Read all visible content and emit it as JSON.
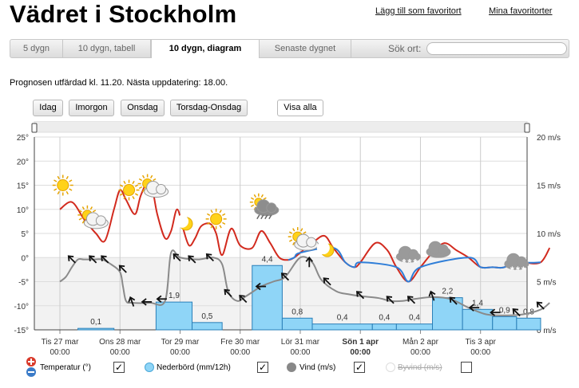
{
  "page": {
    "title": "Vädret i Stockholm"
  },
  "links": {
    "add_favorite": "Lägg till som favoritort",
    "my_favorites": "Mina favoritorter"
  },
  "tabs": [
    {
      "label": "5 dygn"
    },
    {
      "label": "10 dygn, tabell"
    },
    {
      "label": "10 dygn, diagram"
    },
    {
      "label": "Senaste dygnet"
    }
  ],
  "search": {
    "label": "Sök ort:",
    "value": ""
  },
  "forecast_text": "Prognosen utfärdad kl. 11.20. Nästa uppdatering: 18.00.",
  "buttons": [
    {
      "label": "Idag"
    },
    {
      "label": "Imorgon"
    },
    {
      "label": "Onsdag"
    },
    {
      "label": "Torsdag-Onsdag"
    },
    {
      "label": "Visa alla"
    }
  ],
  "legend": {
    "temperature": "Temperatur (°)",
    "precip": "Nederbörd (mm/12h)",
    "wind": "Vind (m/s)",
    "gust": "Byvind (m/s)",
    "checked": "✓"
  },
  "chart_data": {
    "type": "line",
    "left_axis": {
      "ticks": [
        "25°",
        "20°",
        "15°",
        "10°",
        "5°",
        "0°",
        "-5°",
        "-10°",
        "-15°"
      ],
      "range": [
        -15,
        25
      ]
    },
    "right_axis": {
      "ticks": [
        "20 m/s",
        "15 m/s",
        "10 m/s",
        "5 m/s",
        "0 m/s"
      ],
      "range": [
        0,
        20
      ]
    },
    "days": [
      {
        "name": "Tis 27 mar",
        "time": "00:00",
        "bold": false
      },
      {
        "name": "Ons 28 mar",
        "time": "00:00",
        "bold": false
      },
      {
        "name": "Tor 29 mar",
        "time": "00:00",
        "bold": false
      },
      {
        "name": "Fre 30 mar",
        "time": "00:00",
        "bold": false
      },
      {
        "name": "Lör 31 mar",
        "time": "00:00",
        "bold": false
      },
      {
        "name": "Sön 1 apr",
        "time": "00:00",
        "bold": true
      },
      {
        "name": "Mån 2 apr",
        "time": "00:00",
        "bold": false
      },
      {
        "name": "Tis 3 apr",
        "time": "00:00",
        "bold": false
      }
    ],
    "temperature": {
      "x": [
        0,
        0.2,
        0.4,
        0.6,
        0.75,
        0.9,
        1.0,
        1.1,
        1.25,
        1.35,
        1.5,
        1.62,
        1.75,
        1.85,
        1.95,
        2.05,
        2.15,
        2.25,
        2.35,
        2.5,
        2.6,
        2.7,
        2.85,
        3.0,
        3.2,
        3.35,
        3.5,
        3.65,
        3.8,
        3.9,
        4.0,
        4.2,
        4.4,
        4.55,
        4.75,
        4.9,
        5.0,
        5.25,
        5.45,
        5.6,
        5.8,
        6.0,
        6.2,
        6.4,
        6.6,
        6.8,
        7.0,
        7.2,
        7.4,
        7.6,
        7.75,
        8.0,
        8.15
      ],
      "y": [
        10,
        11.5,
        8,
        5,
        3.5,
        10,
        14,
        12,
        9,
        13,
        16,
        9,
        4,
        5.5,
        10,
        6,
        2.5,
        4,
        6.5,
        7,
        5,
        0.5,
        6,
        2.5,
        2,
        5.5,
        3,
        0,
        -0.5,
        0,
        1,
        3,
        4.5,
        2,
        -1,
        -2,
        -1,
        3,
        1.5,
        -2,
        -5,
        -2,
        1,
        3,
        1.5,
        0,
        -2,
        -2,
        -2,
        0,
        -1,
        -1,
        2
      ]
    },
    "temperature_below_zero": {
      "x": [
        3.8,
        3.9,
        4.0,
        4.55,
        4.75,
        4.9,
        5.0,
        5.6,
        5.8,
        6.0,
        6.8,
        7.0,
        7.2,
        7.4,
        7.6,
        7.75,
        8.0
      ],
      "y": [
        -0.5,
        0,
        1,
        2,
        -1,
        -2,
        -1,
        -2,
        -5,
        -2,
        0,
        -2,
        -2,
        -2,
        0,
        -1,
        -1
      ]
    },
    "precipitation": [
      {
        "x0": 0.3,
        "x1": 0.9,
        "mm": 0.1,
        "label": "0,1"
      },
      {
        "x0": 1.6,
        "x1": 2.2,
        "mm": 1.9,
        "label": "1,9"
      },
      {
        "x0": 2.2,
        "x1": 2.7,
        "mm": 0.5,
        "label": "0,5"
      },
      {
        "x0": 3.2,
        "x1": 3.7,
        "mm": 4.4,
        "label": "4,4"
      },
      {
        "x0": 3.7,
        "x1": 4.2,
        "mm": 0.8,
        "label": "0,8"
      },
      {
        "x0": 4.2,
        "x1": 5.2,
        "mm": 0.4,
        "label": "0,4"
      },
      {
        "x0": 5.2,
        "x1": 5.6,
        "mm": 0.4,
        "label": "0,4"
      },
      {
        "x0": 5.6,
        "x1": 6.2,
        "mm": 0.4,
        "label": "0,4"
      },
      {
        "x0": 6.2,
        "x1": 6.7,
        "mm": 2.2,
        "label": "2,2"
      },
      {
        "x0": 6.7,
        "x1": 7.2,
        "mm": 1.4,
        "label": "1,4"
      },
      {
        "x0": 7.2,
        "x1": 7.6,
        "mm": 0.9,
        "label": "0,9"
      },
      {
        "x0": 7.6,
        "x1": 8.0,
        "mm": 0.8,
        "label": "0,8"
      }
    ],
    "wind": {
      "x": [
        0,
        0.1,
        0.2,
        0.3,
        0.4,
        0.55,
        0.7,
        0.85,
        1.0,
        1.05,
        1.1,
        1.2,
        1.5,
        1.75,
        1.85,
        2.0,
        2.3,
        2.55,
        2.7,
        2.8,
        2.95,
        3.1,
        3.35,
        3.55,
        3.75,
        4.0,
        4.2,
        4.35,
        4.6,
        4.8,
        5.0,
        5.3,
        5.5,
        5.7,
        5.9,
        6.2,
        6.5,
        6.8,
        7.1,
        7.4,
        7.7,
        8.0,
        8.15
      ],
      "y": [
        5,
        5.5,
        6.5,
        7.3,
        7.3,
        7.3,
        7.3,
        6.8,
        6,
        4.5,
        3,
        2.8,
        2.8,
        3,
        8,
        7.5,
        7.3,
        7.5,
        6.8,
        4,
        3,
        3.5,
        4.5,
        5,
        5.5,
        7.5,
        7,
        5.2,
        4,
        3.7,
        3.5,
        3.3,
        3,
        3,
        3.2,
        3.4,
        3.2,
        2.3,
        1.6,
        1.5,
        1.6,
        2.1,
        2.8
      ]
    },
    "arrows": [
      {
        "x": 0.2,
        "w": 7.3,
        "r": 135
      },
      {
        "x": 0.55,
        "w": 7.3,
        "r": 135
      },
      {
        "x": 0.75,
        "w": 7.3,
        "r": 135
      },
      {
        "x": 1.05,
        "w": 6.3,
        "r": 135
      },
      {
        "x": 1.2,
        "w": 2.9,
        "r": 160
      },
      {
        "x": 1.45,
        "w": 2.9,
        "r": 90
      },
      {
        "x": 1.7,
        "w": 3.2,
        "r": 90
      },
      {
        "x": 1.95,
        "w": 7.5,
        "r": 135
      },
      {
        "x": 2.2,
        "w": 7.3,
        "r": 135
      },
      {
        "x": 2.5,
        "w": 7.5,
        "r": 135
      },
      {
        "x": 2.8,
        "w": 3.8,
        "r": 135
      },
      {
        "x": 3.05,
        "w": 3.2,
        "r": 135
      },
      {
        "x": 3.35,
        "w": 4.5,
        "r": 90
      },
      {
        "x": 3.75,
        "w": 5.5,
        "r": 135
      },
      {
        "x": 4.15,
        "w": 7,
        "r": 180
      },
      {
        "x": 4.45,
        "w": 5,
        "r": 135
      },
      {
        "x": 5.0,
        "w": 3.6,
        "r": 135
      },
      {
        "x": 5.5,
        "w": 3.1,
        "r": 135
      },
      {
        "x": 5.85,
        "w": 3.1,
        "r": 135
      },
      {
        "x": 6.2,
        "w": 3.5,
        "r": 160
      },
      {
        "x": 6.55,
        "w": 3,
        "r": 135
      },
      {
        "x": 6.9,
        "w": 2.3,
        "r": 90
      },
      {
        "x": 7.25,
        "w": 1.8,
        "r": 90
      },
      {
        "x": 7.6,
        "w": 1.8,
        "r": 135
      },
      {
        "x": 8.0,
        "w": 2.5,
        "r": 135
      }
    ],
    "weather_icons": [
      {
        "x": 0.05,
        "t": 15,
        "kind": "sun"
      },
      {
        "x": 0.55,
        "t": 8,
        "kind": "sun-cloud"
      },
      {
        "x": 1.15,
        "t": 14,
        "kind": "sun"
      },
      {
        "x": 1.55,
        "t": 14.5,
        "kind": "sun-cloud"
      },
      {
        "x": 2.1,
        "t": 7,
        "kind": "moon"
      },
      {
        "x": 2.6,
        "t": 8,
        "kind": "sun"
      },
      {
        "x": 3.4,
        "t": 10.5,
        "kind": "rain"
      },
      {
        "x": 4.05,
        "t": 3.5,
        "kind": "sun-cloud"
      },
      {
        "x": 4.45,
        "t": 1.5,
        "kind": "moon"
      },
      {
        "x": 5.8,
        "t": 0.5,
        "kind": "snow"
      },
      {
        "x": 6.3,
        "t": 1.5,
        "kind": "cloud"
      },
      {
        "x": 7.6,
        "t": -1,
        "kind": "snow"
      }
    ]
  }
}
